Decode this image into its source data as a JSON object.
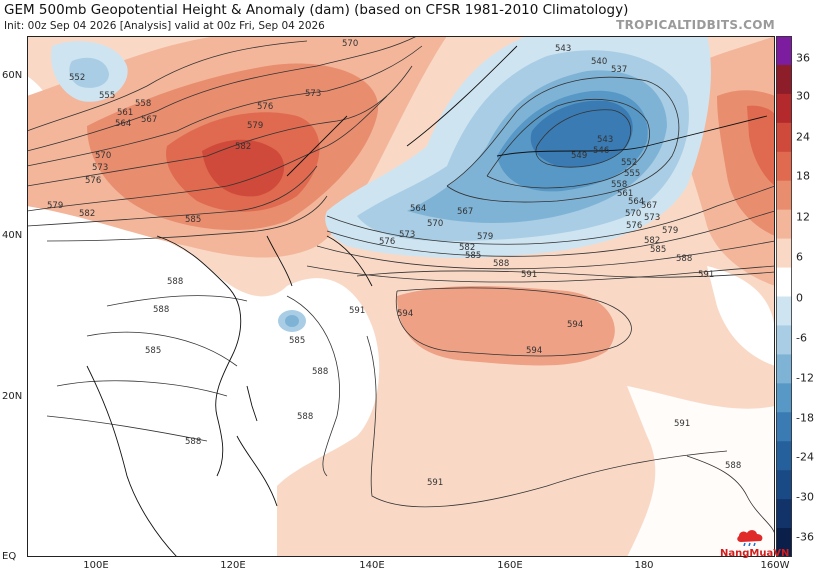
{
  "header": {
    "title": "GEM 500mb Geopotential Height & Anomaly (dam) (based on CFSR 1981-2010 Climatology)",
    "subtitle": "Init: 00z Sep 04 2026   [Analysis]   valid at 00z Fri, Sep 04 2026",
    "brand": "TROPICALTIDBITS.COM"
  },
  "watermark": "NangMuaVN",
  "lat_labels": [
    "60N",
    "40N",
    "20N",
    "EQ"
  ],
  "lon_labels": [
    "100E",
    "120E",
    "140E",
    "160E",
    "180",
    "160W"
  ],
  "colorbar": {
    "ticks": [
      "36",
      "30",
      "24",
      "18",
      "12",
      "6",
      "0",
      "-6",
      "-12",
      "-18",
      "-24",
      "-30",
      "-36"
    ],
    "colors": [
      "#7b1d9e",
      "#8e1d2a",
      "#b42a2c",
      "#cf4a3a",
      "#df6a50",
      "#e98d6f",
      "#f3b69a",
      "#f9d9c6",
      "#ffffff",
      "#cfe4f1",
      "#a9cde4",
      "#7fb3d6",
      "#5898c6",
      "#3a7bb3",
      "#25609d",
      "#1a4a86",
      "#12336a",
      "#0a1f4a"
    ]
  },
  "contour_labels": [
    "552",
    "555",
    "558",
    "561",
    "564",
    "567",
    "570",
    "570",
    "573",
    "573",
    "576",
    "576",
    "579",
    "579",
    "582",
    "582",
    "585",
    "585",
    "585",
    "588",
    "588",
    "588",
    "588",
    "588",
    "591",
    "591",
    "591",
    "591",
    "591",
    "594",
    "594",
    "594",
    "543",
    "540",
    "537",
    "543",
    "546",
    "549",
    "552",
    "555",
    "558",
    "561",
    "564",
    "567",
    "570",
    "573",
    "576",
    "579",
    "582",
    "585",
    "588",
    "564",
    "567",
    "570",
    "573",
    "576",
    "579",
    "582",
    "585",
    "588",
    "588"
  ]
}
